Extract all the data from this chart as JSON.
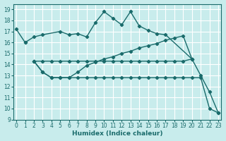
{
  "xlabel": "Humidex (Indice chaleur)",
  "bg_color": "#c8ecec",
  "grid_color": "#ffffff",
  "line_color": "#1a6b6b",
  "xlim": [
    -0.3,
    23.3
  ],
  "ylim": [
    9,
    19.5
  ],
  "xticks": [
    0,
    1,
    2,
    3,
    4,
    5,
    6,
    7,
    8,
    9,
    10,
    11,
    12,
    13,
    14,
    15,
    16,
    17,
    18,
    19,
    20,
    21,
    22,
    23
  ],
  "yticks": [
    9,
    10,
    11,
    12,
    13,
    14,
    15,
    16,
    17,
    18,
    19
  ],
  "line1_x": [
    0,
    1
  ],
  "line1_y": [
    17.2,
    16.0
  ],
  "line2_x": [
    1,
    2,
    3,
    5,
    6,
    7,
    8,
    9,
    10,
    11,
    12,
    13,
    14,
    15,
    16,
    17,
    20
  ],
  "line2_y": [
    16.0,
    16.5,
    16.7,
    17.0,
    16.7,
    16.8,
    16.5,
    17.8,
    18.8,
    18.2,
    17.6,
    18.8,
    17.5,
    17.1,
    16.8,
    16.7,
    14.5
  ],
  "line3_x": [
    2,
    3,
    4,
    5,
    6,
    7,
    8,
    9,
    10,
    11,
    12,
    13,
    14,
    15,
    16,
    17,
    18,
    19,
    20
  ],
  "line3_y": [
    14.3,
    14.3,
    14.3,
    14.3,
    14.3,
    14.3,
    14.3,
    14.3,
    14.3,
    14.3,
    14.3,
    14.3,
    14.3,
    14.3,
    14.3,
    14.3,
    14.3,
    14.3,
    14.5
  ],
  "line4_x": [
    2,
    3,
    4,
    5,
    6,
    7,
    8,
    9,
    10,
    11,
    12,
    13,
    14,
    15,
    16,
    17,
    18,
    19,
    20,
    21,
    22,
    23
  ],
  "line4_y": [
    14.3,
    13.3,
    12.8,
    12.8,
    12.8,
    12.8,
    12.8,
    12.8,
    12.8,
    12.8,
    12.8,
    12.8,
    12.8,
    12.8,
    12.8,
    12.8,
    12.8,
    12.8,
    12.8,
    12.8,
    10.0,
    9.6
  ],
  "line5_x": [
    2,
    3,
    4,
    5,
    6,
    7,
    8,
    9,
    10,
    11,
    12,
    13,
    14,
    15,
    16,
    17,
    18,
    19,
    20,
    21,
    22,
    23
  ],
  "line5_y": [
    14.3,
    13.3,
    12.8,
    12.8,
    12.8,
    13.3,
    13.9,
    14.2,
    14.5,
    14.7,
    15.0,
    15.2,
    15.5,
    15.7,
    15.9,
    16.2,
    16.4,
    16.6,
    14.5,
    13.0,
    11.5,
    9.6
  ]
}
